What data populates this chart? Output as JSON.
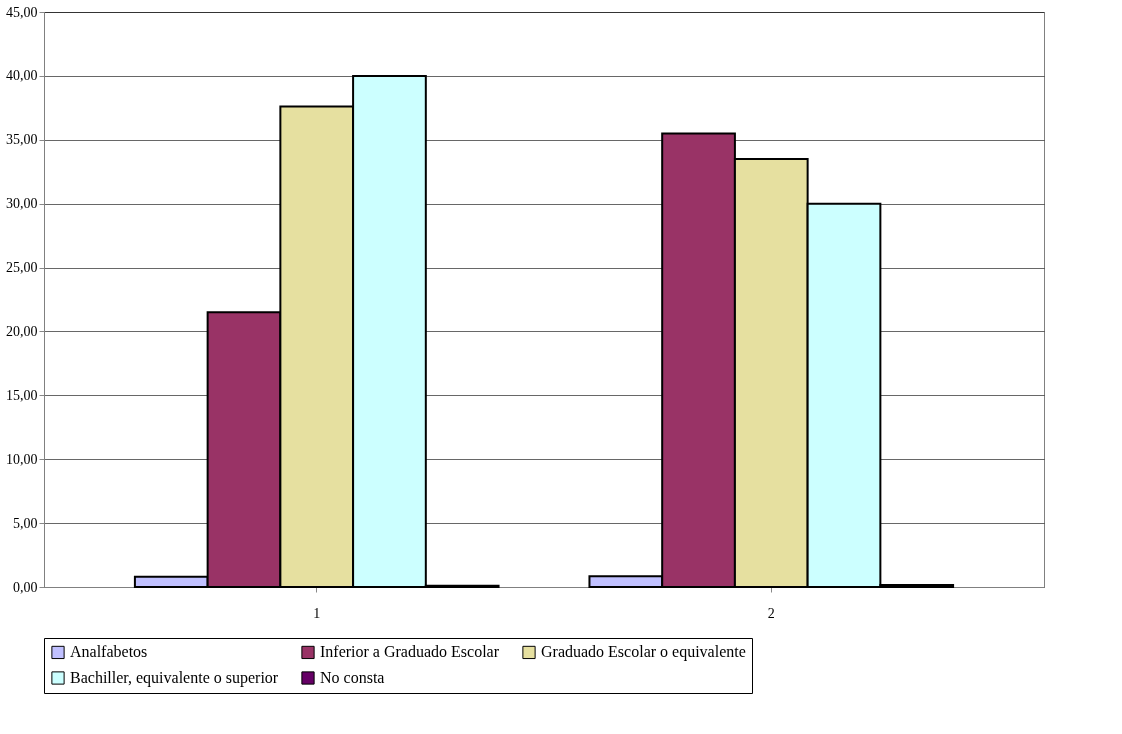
{
  "chart_data": {
    "type": "bar",
    "categories": [
      "1",
      "2"
    ],
    "series": [
      {
        "name": "Analfabetos",
        "color": "#c0c0ff",
        "values": [
          0.8,
          0.85
        ]
      },
      {
        "name": "Inferior a Graduado Escolar",
        "color": "#993366",
        "values": [
          21.5,
          35.5
        ]
      },
      {
        "name": "Graduado Escolar o equivalente",
        "color": "#e6e0a0",
        "values": [
          37.6,
          33.5
        ]
      },
      {
        "name": "Bachiller, equivalente o superior",
        "color": "#ccffff",
        "values": [
          40.0,
          30.0
        ]
      },
      {
        "name": "No consta",
        "color": "#660066",
        "values": [
          0.1,
          0.15
        ]
      }
    ],
    "ylim": [
      0,
      45
    ],
    "yticks": [
      {
        "value": 0,
        "label": "0,00"
      },
      {
        "value": 5,
        "label": "5,00"
      },
      {
        "value": 10,
        "label": "10,00"
      },
      {
        "value": 15,
        "label": "15,00"
      },
      {
        "value": 20,
        "label": "20,00"
      },
      {
        "value": 25,
        "label": "25,00"
      },
      {
        "value": 30,
        "label": "30,00"
      },
      {
        "value": 35,
        "label": "35,00"
      },
      {
        "value": 40,
        "label": "40,00"
      },
      {
        "value": 45,
        "label": "45,00"
      }
    ],
    "grid": "y",
    "legend": "bottom"
  }
}
